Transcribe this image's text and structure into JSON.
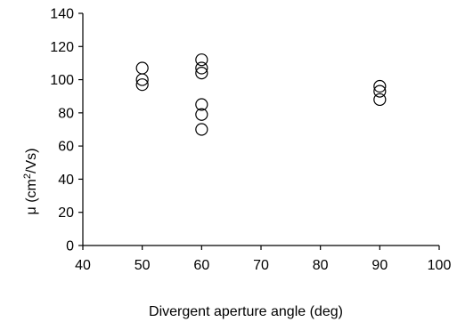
{
  "chart_data": {
    "type": "scatter",
    "title": "",
    "xlabel": "Divergent aperture angle (deg)",
    "ylabel_base": "μ (cm",
    "ylabel_sup": "2",
    "ylabel_tail": "/Vs)",
    "xlim": [
      40,
      100
    ],
    "ylim": [
      0,
      140
    ],
    "xticks": [
      "40",
      "50",
      "60",
      "70",
      "80",
      "90",
      "100"
    ],
    "yticks": [
      "0",
      "20",
      "40",
      "60",
      "80",
      "100",
      "120",
      "140"
    ],
    "grid": false,
    "marker": "open-circle",
    "points": [
      {
        "x": 50,
        "y": 107
      },
      {
        "x": 50,
        "y": 100
      },
      {
        "x": 50,
        "y": 97
      },
      {
        "x": 60,
        "y": 112
      },
      {
        "x": 60,
        "y": 107
      },
      {
        "x": 60,
        "y": 104
      },
      {
        "x": 60,
        "y": 85
      },
      {
        "x": 60,
        "y": 79
      },
      {
        "x": 60,
        "y": 70
      },
      {
        "x": 90,
        "y": 96
      },
      {
        "x": 90,
        "y": 93
      },
      {
        "x": 90,
        "y": 88
      }
    ]
  }
}
